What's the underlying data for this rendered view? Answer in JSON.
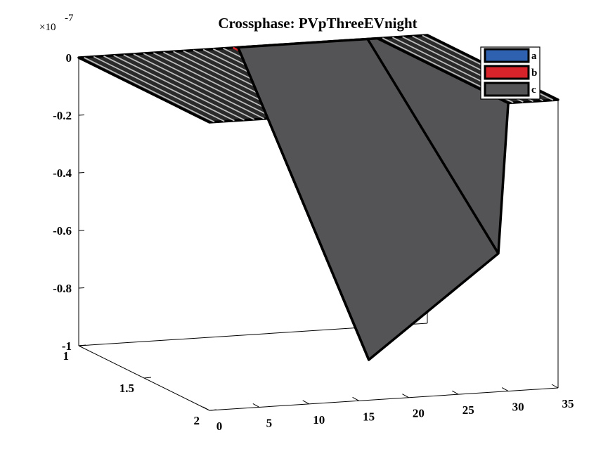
{
  "chart_data": {
    "type": "surface3d",
    "title": "Crossphase: PVpThreeEVnight",
    "z_exponent_label": "×10",
    "z_exponent_power": "-7",
    "xlim": [
      0,
      35
    ],
    "ylim": [
      1,
      2
    ],
    "zlim": [
      -1e-07,
      0
    ],
    "x_ticks": [
      0,
      5,
      10,
      15,
      20,
      25,
      30,
      35
    ],
    "y_ticks": [
      1,
      1.5,
      2
    ],
    "z_ticks": [
      0,
      -0.2,
      -0.4,
      -0.6,
      -0.8,
      -1
    ],
    "x_tick_labels": [
      "0",
      "5",
      "10",
      "15",
      "20",
      "25",
      "30",
      "35"
    ],
    "y_tick_labels": [
      "1",
      "1.5",
      "2"
    ],
    "z_tick_labels": [
      "0",
      "-0.2",
      "-0.4",
      "-0.6",
      "-0.8",
      "-1"
    ],
    "legend_position": "top-right",
    "series": [
      {
        "name": "a",
        "color": "#2e62b0"
      },
      {
        "name": "b",
        "color": "#d8232a"
      },
      {
        "name": "c",
        "color": "#545355"
      }
    ],
    "surface_c": {
      "x": [
        16,
        29,
        30
      ],
      "z_at_y1": [
        0,
        0,
        0
      ],
      "z_at_y2": [
        -8.6e-08,
        -5.2e-08,
        0
      ]
    },
    "stripe_count": 35,
    "red_stripes": [
      15,
      16,
      17
    ]
  }
}
